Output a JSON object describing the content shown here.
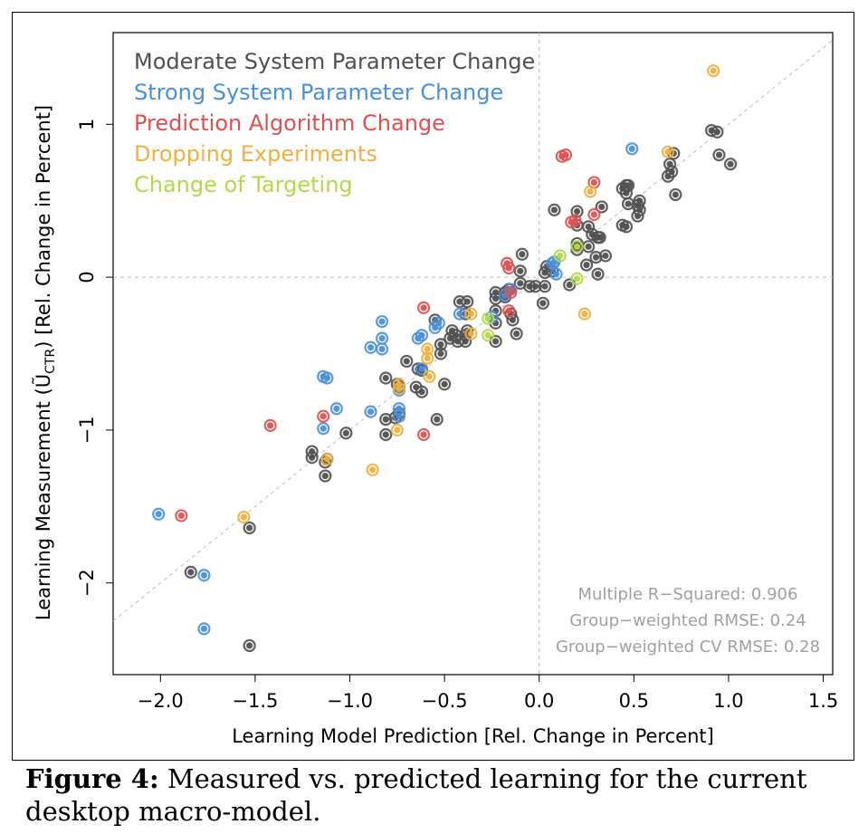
{
  "chart_data": {
    "type": "scatter",
    "xlabel": "Learning Model Prediction  [Rel. Change in Percent]",
    "ylabel_prefix": "Learning Measurement  (",
    "ylabel_symbol": "Ũ",
    "ylabel_sub": "CTR",
    "ylabel_suffix": ")   [Rel. Change in Percent]",
    "xlim": [
      -2.25,
      1.55
    ],
    "ylim": [
      -2.6,
      1.6
    ],
    "xticks": [
      -2.0,
      -1.5,
      -1.0,
      -0.5,
      0.0,
      0.5,
      1.0,
      1.5
    ],
    "xtick_labels": [
      "−2.0",
      "−1.5",
      "−1.0",
      "−0.5",
      "0.0",
      "0.5",
      "1.0",
      "1.5"
    ],
    "yticks": [
      -2,
      -1,
      0,
      1
    ],
    "ytick_labels": [
      "−2",
      "−1",
      "0",
      "1"
    ],
    "reference_lines": [
      "x=0",
      "y=0",
      "y=x"
    ],
    "legend_placement": "top-left",
    "annotations": [
      "Multiple R−Squared: 0.906",
      "Group−weighted RMSE: 0.24",
      "Group−weighted CV RMSE: 0.28"
    ],
    "series": [
      {
        "name": "Moderate System Parameter Change",
        "color": "#505050",
        "points": [
          [
            -1.53,
            -2.41
          ],
          [
            -1.84,
            -1.93
          ],
          [
            -1.53,
            -1.64
          ],
          [
            -1.13,
            -1.3
          ],
          [
            -1.13,
            -1.21
          ],
          [
            -1.12,
            -1.19
          ],
          [
            -1.2,
            -1.14
          ],
          [
            -1.2,
            -1.18
          ],
          [
            -1.02,
            -1.02
          ],
          [
            -0.81,
            -1.03
          ],
          [
            -0.81,
            -0.93
          ],
          [
            -0.76,
            -0.92
          ],
          [
            -0.74,
            -0.89
          ],
          [
            -0.75,
            -0.7
          ],
          [
            -0.74,
            -0.72
          ],
          [
            -0.81,
            -0.66
          ],
          [
            -0.7,
            -0.55
          ],
          [
            -0.64,
            -0.6
          ],
          [
            -0.65,
            -0.72
          ],
          [
            -0.62,
            -0.75
          ],
          [
            -0.62,
            -0.61
          ],
          [
            -0.54,
            -0.93
          ],
          [
            -0.5,
            -0.7
          ],
          [
            -0.52,
            -0.5
          ],
          [
            -0.52,
            -0.44
          ],
          [
            -0.47,
            -0.4
          ],
          [
            -0.44,
            -0.38
          ],
          [
            -0.46,
            -0.35
          ],
          [
            -0.43,
            -0.42
          ],
          [
            -0.39,
            -0.42
          ],
          [
            -0.39,
            -0.38
          ],
          [
            -0.38,
            -0.35
          ],
          [
            -0.39,
            -0.24
          ],
          [
            -0.42,
            -0.16
          ],
          [
            -0.38,
            -0.16
          ],
          [
            -0.55,
            -0.28
          ],
          [
            -0.23,
            -0.42
          ],
          [
            -0.23,
            -0.3
          ],
          [
            -0.23,
            -0.22
          ],
          [
            -0.23,
            -0.14
          ],
          [
            -0.23,
            -0.1
          ],
          [
            -0.18,
            -0.13
          ],
          [
            -0.18,
            -0.1
          ],
          [
            -0.16,
            -0.08
          ],
          [
            -0.15,
            -0.24
          ],
          [
            -0.14,
            -0.28
          ],
          [
            -0.12,
            -0.37
          ],
          [
            -0.1,
            -0.04
          ],
          [
            -0.1,
            0.04
          ],
          [
            -0.09,
            0.15
          ],
          [
            -0.05,
            -0.06
          ],
          [
            -0.02,
            -0.06
          ],
          [
            0.02,
            -0.17
          ],
          [
            0.03,
            -0.06
          ],
          [
            0.03,
            0.03
          ],
          [
            0.04,
            0.07
          ],
          [
            0.08,
            0.44
          ],
          [
            0.07,
            0.04
          ],
          [
            0.16,
            -0.05
          ],
          [
            0.2,
            0.18
          ],
          [
            0.2,
            0.22
          ],
          [
            0.2,
            0.34
          ],
          [
            0.2,
            0.43
          ],
          [
            0.25,
            0.08
          ],
          [
            0.26,
            0.2
          ],
          [
            0.26,
            0.33
          ],
          [
            0.28,
            0.28
          ],
          [
            0.3,
            0.13
          ],
          [
            0.31,
            0.26
          ],
          [
            0.31,
            0.02
          ],
          [
            0.32,
            0.26
          ],
          [
            0.33,
            0.46
          ],
          [
            0.35,
            0.14
          ],
          [
            0.44,
            0.34
          ],
          [
            0.46,
            0.33
          ],
          [
            0.44,
            0.58
          ],
          [
            0.46,
            0.6
          ],
          [
            0.46,
            0.55
          ],
          [
            0.47,
            0.48
          ],
          [
            0.47,
            0.6
          ],
          [
            0.52,
            0.47
          ],
          [
            0.52,
            0.4
          ],
          [
            0.53,
            0.44
          ],
          [
            0.53,
            0.5
          ],
          [
            0.68,
            0.66
          ],
          [
            0.69,
            0.74
          ],
          [
            0.7,
            0.69
          ],
          [
            0.71,
            0.81
          ],
          [
            0.72,
            0.54
          ],
          [
            0.91,
            0.96
          ],
          [
            0.94,
            0.95
          ],
          [
            0.95,
            0.8
          ],
          [
            1.01,
            0.74
          ]
        ]
      },
      {
        "name": "Strong System Parameter Change",
        "color": "#4a90d9",
        "points": [
          [
            -2.01,
            -1.55
          ],
          [
            -1.77,
            -1.95
          ],
          [
            -1.77,
            -2.3
          ],
          [
            -1.14,
            -0.65
          ],
          [
            -1.12,
            -0.66
          ],
          [
            -1.14,
            -0.99
          ],
          [
            -1.07,
            -0.86
          ],
          [
            -0.89,
            -0.46
          ],
          [
            -0.89,
            -0.88
          ],
          [
            -0.83,
            -0.29
          ],
          [
            -0.83,
            -0.4
          ],
          [
            -0.83,
            -0.47
          ],
          [
            -0.74,
            -0.74
          ],
          [
            -0.74,
            -0.86
          ],
          [
            -0.74,
            -0.91
          ],
          [
            -0.64,
            -0.4
          ],
          [
            -0.62,
            -0.38
          ],
          [
            -0.62,
            -0.6
          ],
          [
            -0.53,
            -0.3
          ],
          [
            -0.55,
            -0.33
          ],
          [
            -0.42,
            -0.24
          ],
          [
            -0.25,
            -0.26
          ],
          [
            -0.18,
            -0.12
          ],
          [
            -0.15,
            -0.08
          ],
          [
            0.07,
            0.09
          ],
          [
            0.08,
            0.1
          ],
          [
            0.09,
            0.02
          ],
          [
            0.49,
            0.84
          ]
        ]
      },
      {
        "name": "Prediction Algorithm Change",
        "color": "#e05050",
        "points": [
          [
            -1.89,
            -1.56
          ],
          [
            -1.42,
            -0.97
          ],
          [
            -1.14,
            -0.91
          ],
          [
            -0.61,
            -0.2
          ],
          [
            -0.61,
            -1.03
          ],
          [
            -0.17,
            0.09
          ],
          [
            -0.16,
            0.06
          ],
          [
            -0.15,
            -0.1
          ],
          [
            -0.16,
            -0.22
          ],
          [
            0.12,
            0.79
          ],
          [
            0.14,
            0.8
          ],
          [
            0.17,
            0.36
          ],
          [
            0.19,
            0.37
          ],
          [
            0.29,
            0.62
          ],
          [
            0.29,
            0.41
          ]
        ]
      },
      {
        "name": "Dropping Experiments",
        "color": "#f0b040",
        "points": [
          [
            -1.56,
            -1.57
          ],
          [
            -1.12,
            -1.19
          ],
          [
            -0.88,
            -1.26
          ],
          [
            -0.74,
            -0.73
          ],
          [
            -0.74,
            -0.7
          ],
          [
            -0.75,
            -1.0
          ],
          [
            -0.59,
            -0.47
          ],
          [
            -0.58,
            -0.65
          ],
          [
            -0.59,
            -0.53
          ],
          [
            -0.36,
            -0.37
          ],
          [
            -0.36,
            -0.24
          ],
          [
            0.24,
            -0.24
          ],
          [
            0.27,
            0.56
          ],
          [
            0.68,
            0.82
          ],
          [
            0.92,
            1.35
          ]
        ]
      },
      {
        "name": "Change of Targeting",
        "color": "#b5d84a",
        "points": [
          [
            -0.27,
            -0.27
          ],
          [
            -0.27,
            -0.38
          ],
          [
            0.11,
            0.14
          ],
          [
            0.2,
            0.2
          ],
          [
            0.2,
            -0.01
          ]
        ]
      }
    ]
  },
  "caption": {
    "label": "Figure 4:",
    "text": " Measured vs. predicted learning for the current desktop macro-model."
  }
}
